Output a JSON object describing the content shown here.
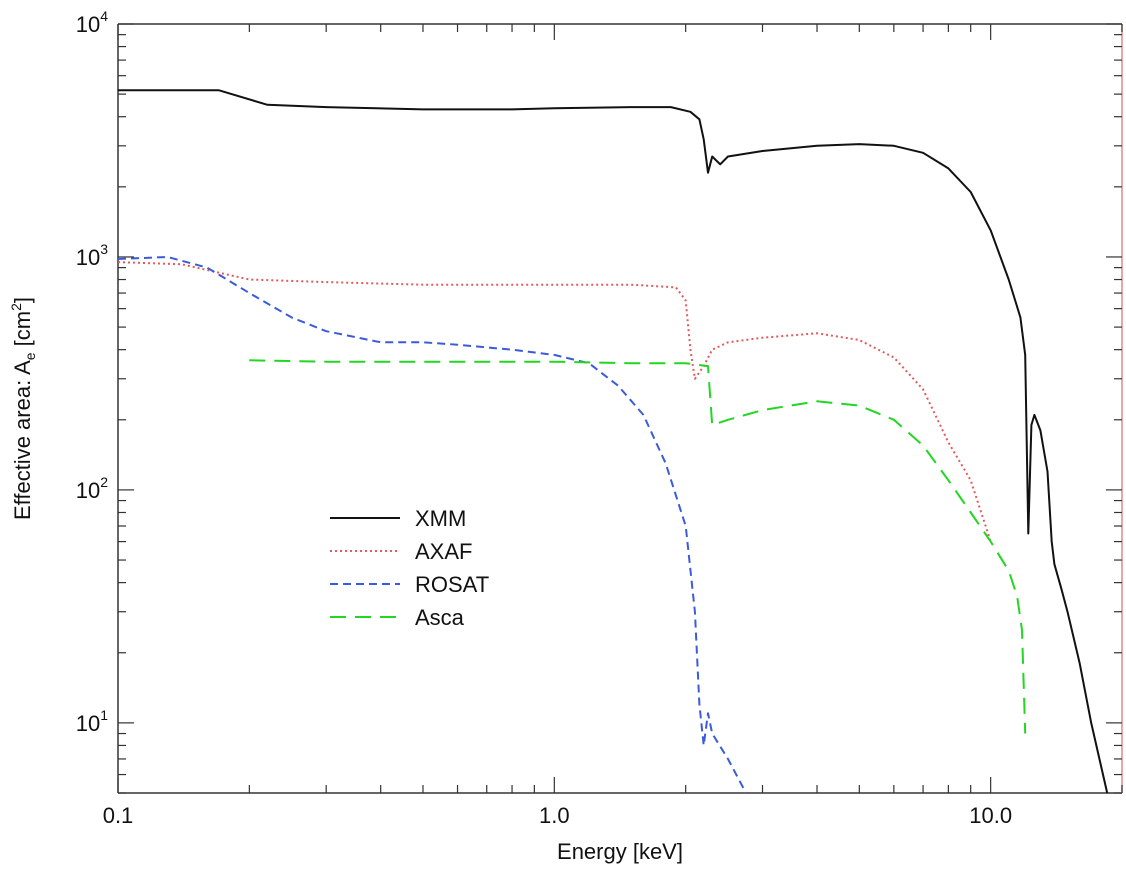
{
  "chart_data": {
    "type": "line",
    "title": "",
    "xlabel": "Energy [keV]",
    "ylabel": "Effective area: A",
    "ylabel_sub": "e",
    "ylabel_unit_open": " [cm",
    "ylabel_unit_sup": "2",
    "ylabel_unit_close": "]",
    "xscale": "log",
    "yscale": "log",
    "xlim": [
      0.1,
      20
    ],
    "ylim": [
      5,
      10000
    ],
    "x_ticks": [
      {
        "value": 0.1,
        "label": "0.1"
      },
      {
        "value": 1.0,
        "label": "1.0"
      },
      {
        "value": 10.0,
        "label": "10.0"
      }
    ],
    "y_ticks": [
      {
        "value": 10,
        "base": "10",
        "exp": "1"
      },
      {
        "value": 100,
        "base": "10",
        "exp": "2"
      },
      {
        "value": 1000,
        "base": "10",
        "exp": "3"
      },
      {
        "value": 10000,
        "base": "10",
        "exp": "4"
      }
    ],
    "grid": false,
    "legend_position": "lower-left",
    "series": [
      {
        "name": "XMM",
        "color": "#111111",
        "dash": "solid",
        "points": [
          [
            0.1,
            5200
          ],
          [
            0.17,
            5200
          ],
          [
            0.22,
            4500
          ],
          [
            0.3,
            4400
          ],
          [
            0.5,
            4300
          ],
          [
            0.8,
            4300
          ],
          [
            1.0,
            4350
          ],
          [
            1.5,
            4400
          ],
          [
            1.85,
            4400
          ],
          [
            2.05,
            4200
          ],
          [
            2.15,
            3900
          ],
          [
            2.2,
            3200
          ],
          [
            2.25,
            2300
          ],
          [
            2.3,
            2700
          ],
          [
            2.4,
            2500
          ],
          [
            2.5,
            2700
          ],
          [
            3.0,
            2850
          ],
          [
            4.0,
            3000
          ],
          [
            5.0,
            3050
          ],
          [
            6.0,
            3000
          ],
          [
            7.0,
            2800
          ],
          [
            8.0,
            2400
          ],
          [
            9.0,
            1900
          ],
          [
            10.0,
            1300
          ],
          [
            11.0,
            800
          ],
          [
            11.7,
            550
          ],
          [
            12.0,
            380
          ],
          [
            12.2,
            65
          ],
          [
            12.4,
            190
          ],
          [
            12.6,
            210
          ],
          [
            13.0,
            180
          ],
          [
            13.5,
            120
          ],
          [
            13.8,
            60
          ],
          [
            14.0,
            48
          ],
          [
            14.5,
            38
          ],
          [
            15.0,
            30
          ],
          [
            16.0,
            18
          ],
          [
            17.0,
            10
          ],
          [
            18.5,
            5
          ]
        ]
      },
      {
        "name": "AXAF",
        "color": "#e35a5a",
        "dash": "dotted",
        "points": [
          [
            0.1,
            950
          ],
          [
            0.14,
            930
          ],
          [
            0.2,
            800
          ],
          [
            0.3,
            780
          ],
          [
            0.5,
            760
          ],
          [
            1.0,
            760
          ],
          [
            1.5,
            760
          ],
          [
            1.9,
            740
          ],
          [
            2.0,
            650
          ],
          [
            2.05,
            400
          ],
          [
            2.1,
            300
          ],
          [
            2.2,
            340
          ],
          [
            2.3,
            400
          ],
          [
            2.5,
            430
          ],
          [
            3.0,
            450
          ],
          [
            4.0,
            470
          ],
          [
            5.0,
            440
          ],
          [
            6.0,
            370
          ],
          [
            7.0,
            270
          ],
          [
            8.0,
            160
          ],
          [
            9.0,
            110
          ],
          [
            10.0,
            60
          ]
        ]
      },
      {
        "name": "ROSAT",
        "color": "#3b5bdb",
        "dash": "dashed",
        "points": [
          [
            0.1,
            980
          ],
          [
            0.13,
            1000
          ],
          [
            0.16,
            900
          ],
          [
            0.2,
            700
          ],
          [
            0.25,
            550
          ],
          [
            0.3,
            480
          ],
          [
            0.4,
            430
          ],
          [
            0.5,
            430
          ],
          [
            0.6,
            420
          ],
          [
            0.8,
            400
          ],
          [
            1.0,
            380
          ],
          [
            1.2,
            350
          ],
          [
            1.4,
            280
          ],
          [
            1.6,
            210
          ],
          [
            1.8,
            130
          ],
          [
            2.0,
            70
          ],
          [
            2.1,
            30
          ],
          [
            2.15,
            12
          ],
          [
            2.2,
            8
          ],
          [
            2.25,
            11
          ],
          [
            2.3,
            9
          ],
          [
            2.5,
            7
          ],
          [
            2.75,
            5
          ]
        ]
      },
      {
        "name": "Asca",
        "color": "#22d622",
        "dash": "longdash",
        "points": [
          [
            0.2,
            360
          ],
          [
            0.3,
            355
          ],
          [
            0.5,
            355
          ],
          [
            0.8,
            355
          ],
          [
            1.0,
            355
          ],
          [
            1.5,
            350
          ],
          [
            2.0,
            350
          ],
          [
            2.25,
            340
          ],
          [
            2.3,
            190
          ],
          [
            2.5,
            200
          ],
          [
            3.0,
            220
          ],
          [
            4.0,
            240
          ],
          [
            5.0,
            230
          ],
          [
            6.0,
            200
          ],
          [
            7.0,
            155
          ],
          [
            8.0,
            110
          ],
          [
            9.0,
            80
          ],
          [
            10.0,
            60
          ],
          [
            11.0,
            45
          ],
          [
            11.5,
            35
          ],
          [
            11.8,
            25
          ],
          [
            12.0,
            9
          ]
        ]
      }
    ]
  }
}
